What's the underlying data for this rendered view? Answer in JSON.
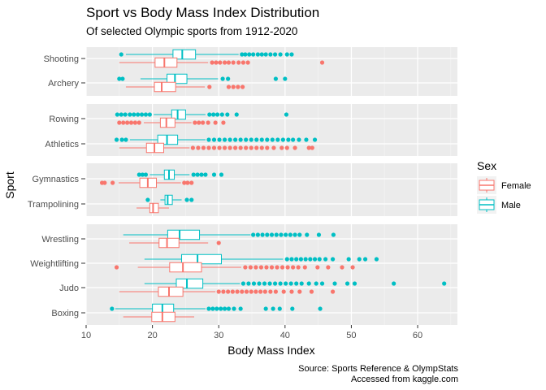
{
  "chart_data": {
    "type": "boxplot",
    "title": "Sport vs Body Mass Index Distribution",
    "subtitle": "Of selected Olympic sports from 1912-2020",
    "xlabel": "Body Mass Index",
    "ylabel": "Sport",
    "xlim": [
      10,
      66
    ],
    "x_ticks": [
      10,
      20,
      30,
      40,
      50,
      60
    ],
    "caption": [
      "Source: Sports Reference & OlympStats",
      "Accessed from kaggle.com"
    ],
    "grid": true,
    "legend": {
      "title": "Sex",
      "position": "right",
      "items": [
        {
          "label": "Female",
          "color": "#F8766D"
        },
        {
          "label": "Male",
          "color": "#00BFC4"
        }
      ]
    },
    "panels": [
      {
        "sports": [
          {
            "name": "Shooting",
            "male": {
              "q1": 23.1,
              "median": 24.5,
              "q3": 26.5,
              "whisker_low": 16.0,
              "whisker_high": 33.0,
              "outliers": [
                15.3,
                33.5,
                34.0,
                34.6,
                35.2,
                35.9,
                36.5,
                37.1,
                37.8,
                38.5,
                39.3,
                40.3,
                41.0
              ]
            },
            "female": {
              "q1": 20.4,
              "median": 21.8,
              "q3": 23.7,
              "whisker_low": 15.0,
              "whisker_high": 28.4,
              "outliers": [
                29.0,
                29.6,
                30.2,
                30.9,
                31.5,
                32.2,
                33.0,
                33.7,
                34.4,
                45.6
              ]
            }
          },
          {
            "name": "Archery",
            "male": {
              "q1": 22.2,
              "median": 23.4,
              "q3": 25.2,
              "whisker_low": 18.2,
              "whisker_high": 29.9,
              "outliers": [
                15.0,
                15.5,
                30.6,
                31.4,
                38.6,
                40.0
              ]
            },
            "female": {
              "q1": 20.3,
              "median": 21.4,
              "q3": 23.5,
              "whisker_low": 16.0,
              "whisker_high": 27.9,
              "outliers": [
                28.6,
                31.5,
                32.2,
                32.9,
                33.6
              ]
            }
          }
        ]
      },
      {
        "sports": [
          {
            "name": "Rowing",
            "male": {
              "q1": 22.9,
              "median": 23.8,
              "q3": 25.0,
              "whisker_low": 20.2,
              "whisker_high": 28.0,
              "outliers": [
                14.7,
                15.3,
                15.9,
                16.6,
                17.2,
                17.8,
                18.4,
                19.0,
                19.6,
                28.6,
                29.2,
                29.8,
                30.5,
                31.3,
                32.7,
                40.2
              ]
            },
            "female": {
              "q1": 21.2,
              "median": 22.1,
              "q3": 23.4,
              "whisker_low": 18.7,
              "whisker_high": 25.9,
              "outliers": [
                15.0,
                15.6,
                16.2,
                16.8,
                17.4,
                18.0,
                26.4,
                27.0,
                27.6,
                28.4,
                29.5,
                30.7
              ]
            },
            "male_first": true
          },
          {
            "name": "Athletics",
            "male": {
              "q1": 20.8,
              "median": 22.2,
              "q3": 23.8,
              "whisker_low": 16.6,
              "whisker_high": 28.0,
              "outliers": [
                14.6,
                15.4,
                16.0,
                28.5,
                29.3,
                30.1,
                30.9,
                31.7,
                32.5,
                33.3,
                34.1,
                34.9,
                35.7,
                36.5,
                37.3,
                38.1,
                38.9,
                39.7,
                40.5,
                41.2,
                42.1,
                43.2,
                44.5
              ]
            },
            "female": {
              "q1": 19.1,
              "median": 20.3,
              "q3": 21.7,
              "whisker_low": 15.0,
              "whisker_high": 25.6,
              "outliers": [
                26.1,
                26.9,
                27.7,
                28.5,
                29.3,
                30.1,
                30.9,
                31.7,
                32.5,
                33.3,
                34.1,
                34.9,
                35.7,
                36.5,
                37.3,
                38.3,
                39.5,
                40.3,
                41.5,
                43.6,
                44.1
              ]
            }
          }
        ]
      },
      {
        "sports": [
          {
            "name": "Gymnastics",
            "male": {
              "q1": 21.8,
              "median": 22.5,
              "q3": 23.3,
              "whisker_low": 19.6,
              "whisker_high": 25.6,
              "outliers": [
                18.0,
                18.5,
                19.0,
                26.2,
                26.8,
                27.4,
                28.0,
                29.3,
                30.4
              ]
            },
            "female": {
              "q1": 18.1,
              "median": 19.3,
              "q3": 20.6,
              "whisker_low": 14.9,
              "whisker_high": 24.3,
              "outliers": [
                12.4,
                12.8,
                14.0,
                24.8,
                25.3,
                25.9
              ]
            }
          },
          {
            "name": "Trampolining",
            "male": {
              "q1": 21.9,
              "median": 22.3,
              "q3": 23.0,
              "whisker_low": 21.2,
              "whisker_high": 24.4,
              "outliers": [
                19.3,
                25.2,
                25.9
              ]
            },
            "female": {
              "q1": 19.6,
              "median": 20.1,
              "q3": 20.9,
              "whisker_low": 17.6,
              "whisker_high": 22.5,
              "outliers": []
            }
          }
        ]
      },
      {
        "sports": [
          {
            "name": "Wrestling",
            "male": {
              "q1": 22.3,
              "median": 24.1,
              "q3": 27.1,
              "whisker_low": 15.6,
              "whisker_high": 34.8,
              "outliers": [
                35.2,
                35.9,
                36.6,
                37.3,
                38.0,
                38.7,
                39.4,
                40.1,
                40.8,
                41.5,
                42.2,
                43.3,
                45.1,
                47.3
              ]
            },
            "female": {
              "q1": 21.0,
              "median": 22.2,
              "q3": 24.0,
              "whisker_low": 16.5,
              "whisker_high": 28.4,
              "outliers": [
                30.0
              ]
            }
          },
          {
            "name": "Weightlifting",
            "male": {
              "q1": 24.4,
              "median": 26.8,
              "q3": 30.4,
              "whisker_low": 18.8,
              "whisker_high": 39.7,
              "outliers": [
                40.3,
                41.0,
                41.7,
                42.4,
                43.1,
                43.8,
                44.5,
                45.2,
                46.1,
                47.2,
                49.6,
                51.2,
                52.1,
                53.8
              ]
            },
            "female": {
              "q1": 22.6,
              "median": 24.6,
              "q3": 27.4,
              "whisker_low": 17.8,
              "whisker_high": 33.4,
              "outliers": [
                14.6,
                34.0,
                34.8,
                35.6,
                36.4,
                37.2,
                38.0,
                38.8,
                39.6,
                40.4,
                41.2,
                42.0,
                43.0,
                44.9,
                46.5,
                48.6,
                50.2
              ]
            }
          },
          {
            "name": "Judo",
            "male": {
              "q1": 23.6,
              "median": 25.2,
              "q3": 27.6,
              "whisker_low": 18.8,
              "whisker_high": 33.2,
              "outliers": [
                33.7,
                34.5,
                35.3,
                36.1,
                36.9,
                37.7,
                38.5,
                39.3,
                40.1,
                40.9,
                41.7,
                42.5,
                43.6,
                44.7,
                45.6,
                47.5,
                49.4,
                50.5,
                56.4,
                64.0
              ]
            },
            "female": {
              "q1": 20.9,
              "median": 22.5,
              "q3": 24.6,
              "whisker_low": 15.0,
              "whisker_high": 29.5,
              "outliers": [
                30.0,
                30.7,
                31.4,
                32.1,
                32.8,
                33.5,
                34.2,
                34.9,
                35.6,
                36.3,
                37.0,
                37.8,
                38.6,
                39.8,
                41.0,
                42.2,
                44.0,
                47.2
              ]
            }
          },
          {
            "name": "Boxing",
            "male": {
              "q1": 20.0,
              "median": 21.5,
              "q3": 23.2,
              "whisker_low": 14.4,
              "whisker_high": 28.0,
              "outliers": [
                13.9,
                28.5,
                29.1,
                29.7,
                30.3,
                30.9,
                31.5,
                32.3,
                33.3,
                37.1,
                38.2,
                39.2,
                41.1,
                45.3
              ]
            },
            "female": {
              "q1": 19.9,
              "median": 21.5,
              "q3": 23.4,
              "whisker_low": 15.6,
              "whisker_high": 26.3,
              "outliers": []
            }
          }
        ]
      }
    ]
  }
}
